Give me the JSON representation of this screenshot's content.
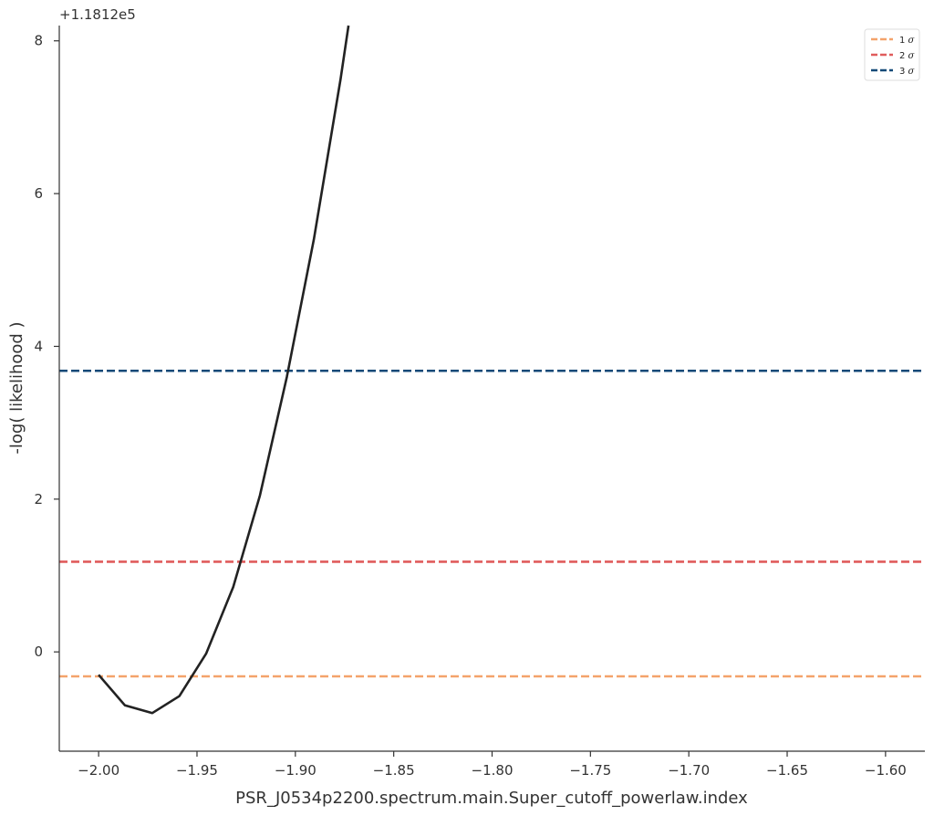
{
  "chart_data": {
    "type": "line",
    "xlabel": "PSR_J0534p2200.spectrum.main.Super_cutoff_powerlaw.index",
    "ylabel": "-log( likelihood )",
    "y_offset_label": "+1.1812e5",
    "xlim": [
      -2.02,
      -1.58
    ],
    "ylim": [
      -1.3,
      8.2
    ],
    "xticks": [
      -2.0,
      -1.95,
      -1.9,
      -1.85,
      -1.8,
      -1.75,
      -1.7,
      -1.65,
      -1.6
    ],
    "xtick_labels": [
      "−2.00",
      "−1.95",
      "−1.90",
      "−1.85",
      "−1.80",
      "−1.75",
      "−1.70",
      "−1.65",
      "−1.60"
    ],
    "yticks": [
      0,
      2,
      4,
      6,
      8
    ],
    "ytick_labels": [
      "0",
      "2",
      "4",
      "6",
      "8"
    ],
    "grid": false,
    "legend_position": "top-right",
    "series": [
      {
        "color": "#222222",
        "x": [
          -2.0,
          -1.9866,
          -1.9727,
          -1.959,
          -1.9453,
          -1.9316,
          -1.918,
          -1.9043,
          -1.8906,
          -1.877,
          -1.873
        ],
        "y": [
          -0.3,
          -0.7,
          -0.8,
          -0.58,
          -0.02,
          0.85,
          2.05,
          3.6,
          5.4,
          7.5,
          8.2
        ]
      }
    ],
    "hlines": [
      {
        "label": "1",
        "y": -0.32,
        "color": "#f4a36b"
      },
      {
        "label": "2",
        "y": 1.18,
        "color": "#e05c5c"
      },
      {
        "label": "3",
        "y": 3.68,
        "color": "#144a78"
      }
    ],
    "sigma_symbol": "σ"
  }
}
